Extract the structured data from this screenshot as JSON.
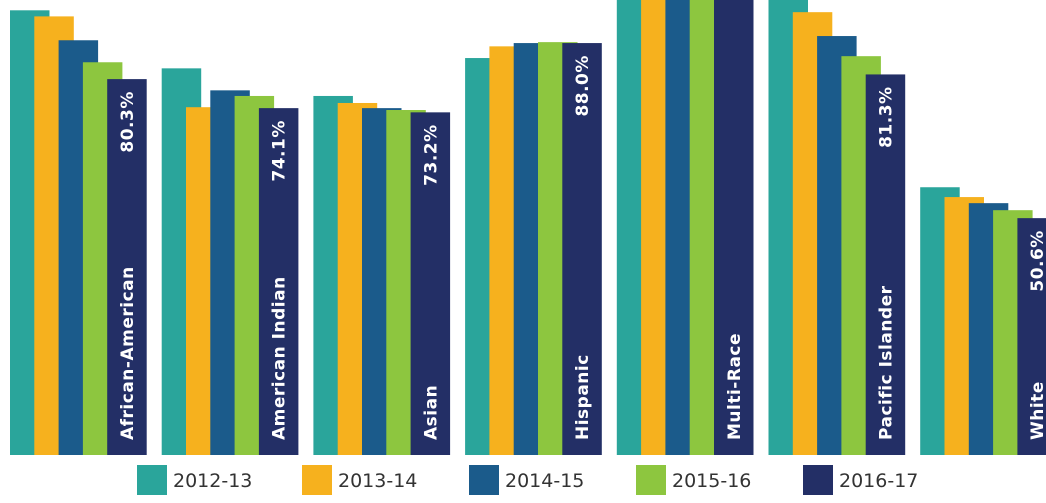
{
  "chart_data": {
    "type": "bar",
    "categories": [
      "African-American",
      "American Indian",
      "Asian",
      "Hispanic",
      "Multi-Race",
      "Pacific Islander",
      "White"
    ],
    "ylim": [
      0,
      97.2
    ],
    "series": [
      {
        "name": "2012-13",
        "color": "#2aa59b",
        "values": [
          95.0,
          82.6,
          76.7,
          84.8,
          99.0,
          98.0,
          57.2
        ]
      },
      {
        "name": "2013-14",
        "color": "#f6b11e",
        "values": [
          93.7,
          74.3,
          75.2,
          87.3,
          99.0,
          94.6,
          55.1
        ]
      },
      {
        "name": "2014-15",
        "color": "#1b5b8b",
        "values": [
          88.6,
          77.9,
          74.1,
          88.0,
          99.0,
          89.5,
          53.8
        ]
      },
      {
        "name": "2015-16",
        "color": "#8dc63f",
        "values": [
          83.9,
          76.7,
          73.7,
          88.2,
          99.0,
          85.2,
          52.3
        ]
      },
      {
        "name": "2016-17",
        "color": "#232f66",
        "values": [
          80.3,
          74.1,
          73.2,
          88.0,
          99.0,
          81.3,
          50.6
        ],
        "value_labels": [
          "80.3%",
          "74.1%",
          "73.2%",
          "88.0%",
          null,
          "81.3%",
          "50.6%"
        ]
      }
    ]
  }
}
